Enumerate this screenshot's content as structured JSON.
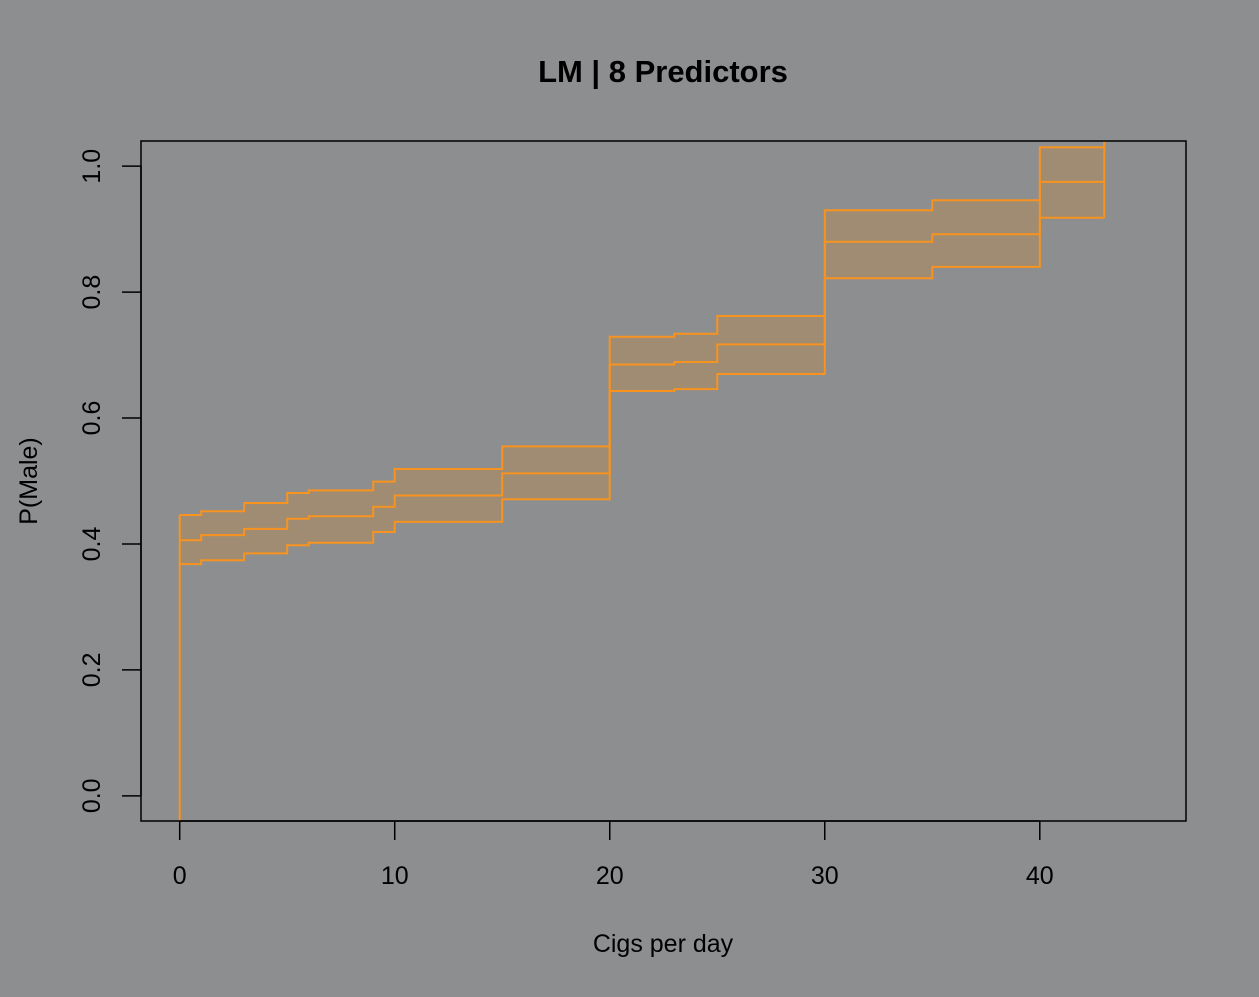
{
  "chart_data": {
    "type": "line",
    "title": "LM | 8 Predictors",
    "xlabel": "Cigs per day",
    "ylabel": "P(Male)",
    "xlim": [
      -1.8,
      46.8
    ],
    "ylim": [
      -0.04,
      1.04
    ],
    "x_ticks": [
      0,
      10,
      20,
      30,
      40
    ],
    "y_ticks": [
      0.0,
      0.2,
      0.4,
      0.6,
      0.8,
      1.0
    ],
    "x_tick_labels": [
      "0",
      "10",
      "20",
      "30",
      "40"
    ],
    "y_tick_labels": [
      "0.0",
      "0.2",
      "0.4",
      "0.6",
      "0.8",
      "1.0"
    ],
    "grid": false,
    "legend": "none",
    "step": true,
    "band_fill_color": "#a08c72",
    "line_color": "#f7931e",
    "background_color": "#8d8e90",
    "x": [
      0,
      1,
      3,
      5,
      6,
      9,
      10,
      15,
      20,
      23,
      25,
      30,
      35,
      40,
      43
    ],
    "series": [
      {
        "role": "upper",
        "values": [
          0.446,
          0.452,
          0.465,
          0.481,
          0.485,
          0.499,
          0.519,
          0.555,
          0.729,
          0.734,
          0.762,
          0.93,
          0.946,
          1.03,
          1.04
        ]
      },
      {
        "role": "fit",
        "values": [
          0.406,
          0.414,
          0.424,
          0.44,
          0.444,
          0.459,
          0.477,
          0.512,
          0.685,
          0.689,
          0.717,
          0.88,
          0.892,
          0.975,
          0.975
        ]
      },
      {
        "role": "lower",
        "values": [
          0.368,
          0.374,
          0.385,
          0.398,
          0.402,
          0.419,
          0.435,
          0.471,
          0.643,
          0.646,
          0.67,
          0.822,
          0.84,
          0.918,
          0.918
        ]
      }
    ],
    "initial_drop_from": -0.04
  }
}
